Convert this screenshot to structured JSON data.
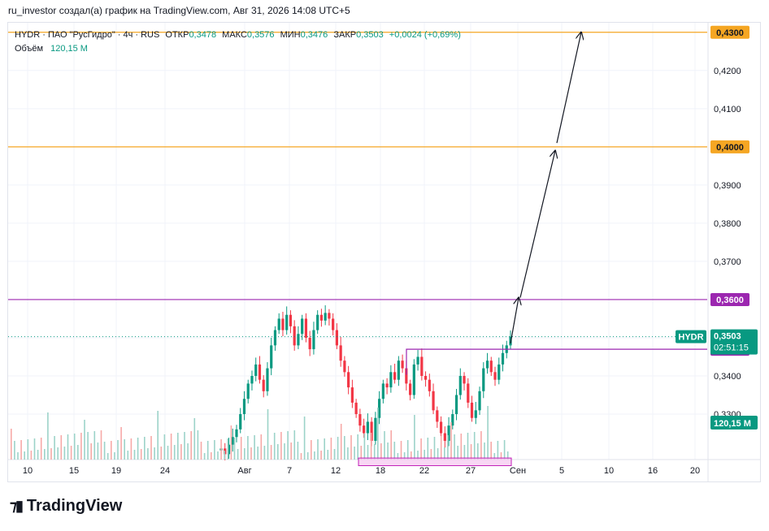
{
  "caption": "ru_investor создал(а) график на TradingView.com, Авг 31, 2026 14:08 UTC+5",
  "legend": {
    "symbol": "HYDR · ПАО \"РусГидро\" · 4ч · RUS",
    "open_label": "ОТКР",
    "open": "0,3478",
    "high_label": "МАКС",
    "high": "0,3576",
    "low_label": "МИН",
    "low": "0,3476",
    "close_label": "ЗАКР",
    "close": "0,3503",
    "change": "+0,0024 (+0,69%)",
    "volume_label": "Объём",
    "volume": "120,15 M"
  },
  "brand": {
    "name": "TradingView"
  },
  "colors": {
    "up": "#089981",
    "down": "#f23645",
    "orange": "#f5a623",
    "purple": "#9c27b0",
    "price_tag": "#089981",
    "grid": "#f0f3fa",
    "volume_up": "#9cd3c9",
    "volume_down": "#f7a9a7"
  },
  "chart_data": {
    "type": "candlestick",
    "timeframe": "4ч",
    "y_ticks": [
      "0,4200",
      "0,4100",
      "0,3900",
      "0,3800",
      "0,3700",
      "0,3400",
      "0,3300"
    ],
    "y_tick_values": [
      0.42,
      0.41,
      0.39,
      0.38,
      0.37,
      0.34,
      0.33
    ],
    "ylim": [
      0.3181,
      0.4325
    ],
    "x_ticks": [
      "10",
      "15",
      "19",
      "24",
      "Авг",
      "7",
      "12",
      "18",
      "22",
      "27",
      "Сен",
      "5",
      "10",
      "16",
      "20"
    ],
    "horizontal_lines": [
      {
        "value": 0.43,
        "label": "0,4300",
        "color": "orange"
      },
      {
        "value": 0.4,
        "label": "0,4000",
        "color": "orange"
      },
      {
        "value": 0.36,
        "label": "0,3600",
        "color": "purple"
      }
    ],
    "resistance_from_date": "18",
    "resistance_level": {
      "value": 0.347,
      "label": "0,3470"
    },
    "current_price": {
      "symbol": "HYDR",
      "value": 0.3503,
      "label": "0,3503",
      "countdown": "02:51:15"
    },
    "volume_tag": "120,15 M",
    "projection_arrows": [
      {
        "from": 0.3485,
        "to": 0.3605
      },
      {
        "from": 0.3605,
        "to": 0.399
      },
      {
        "from": 0.401,
        "to": 0.43
      }
    ],
    "support_zone": "0,3165–0,3185",
    "closes": [
      0.321,
      0.3195,
      0.322,
      0.324,
      0.326,
      0.33,
      0.334,
      0.338,
      0.34,
      0.343,
      0.339,
      0.336,
      0.342,
      0.348,
      0.352,
      0.355,
      0.352,
      0.356,
      0.353,
      0.348,
      0.351,
      0.355,
      0.35,
      0.347,
      0.352,
      0.356,
      0.3545,
      0.3565,
      0.355,
      0.352,
      0.348,
      0.344,
      0.341,
      0.337,
      0.333,
      0.33,
      0.327,
      0.325,
      0.328,
      0.323,
      0.329,
      0.334,
      0.338,
      0.337,
      0.341,
      0.339,
      0.344,
      0.342,
      0.338,
      0.335,
      0.343,
      0.345,
      0.34,
      0.339,
      0.336,
      0.331,
      0.328,
      0.325,
      0.323,
      0.327,
      0.33,
      0.335,
      0.34,
      0.338,
      0.333,
      0.329,
      0.331,
      0.336,
      0.342,
      0.344,
      0.341,
      0.339,
      0.343,
      0.346,
      0.348,
      0.3503
    ]
  }
}
